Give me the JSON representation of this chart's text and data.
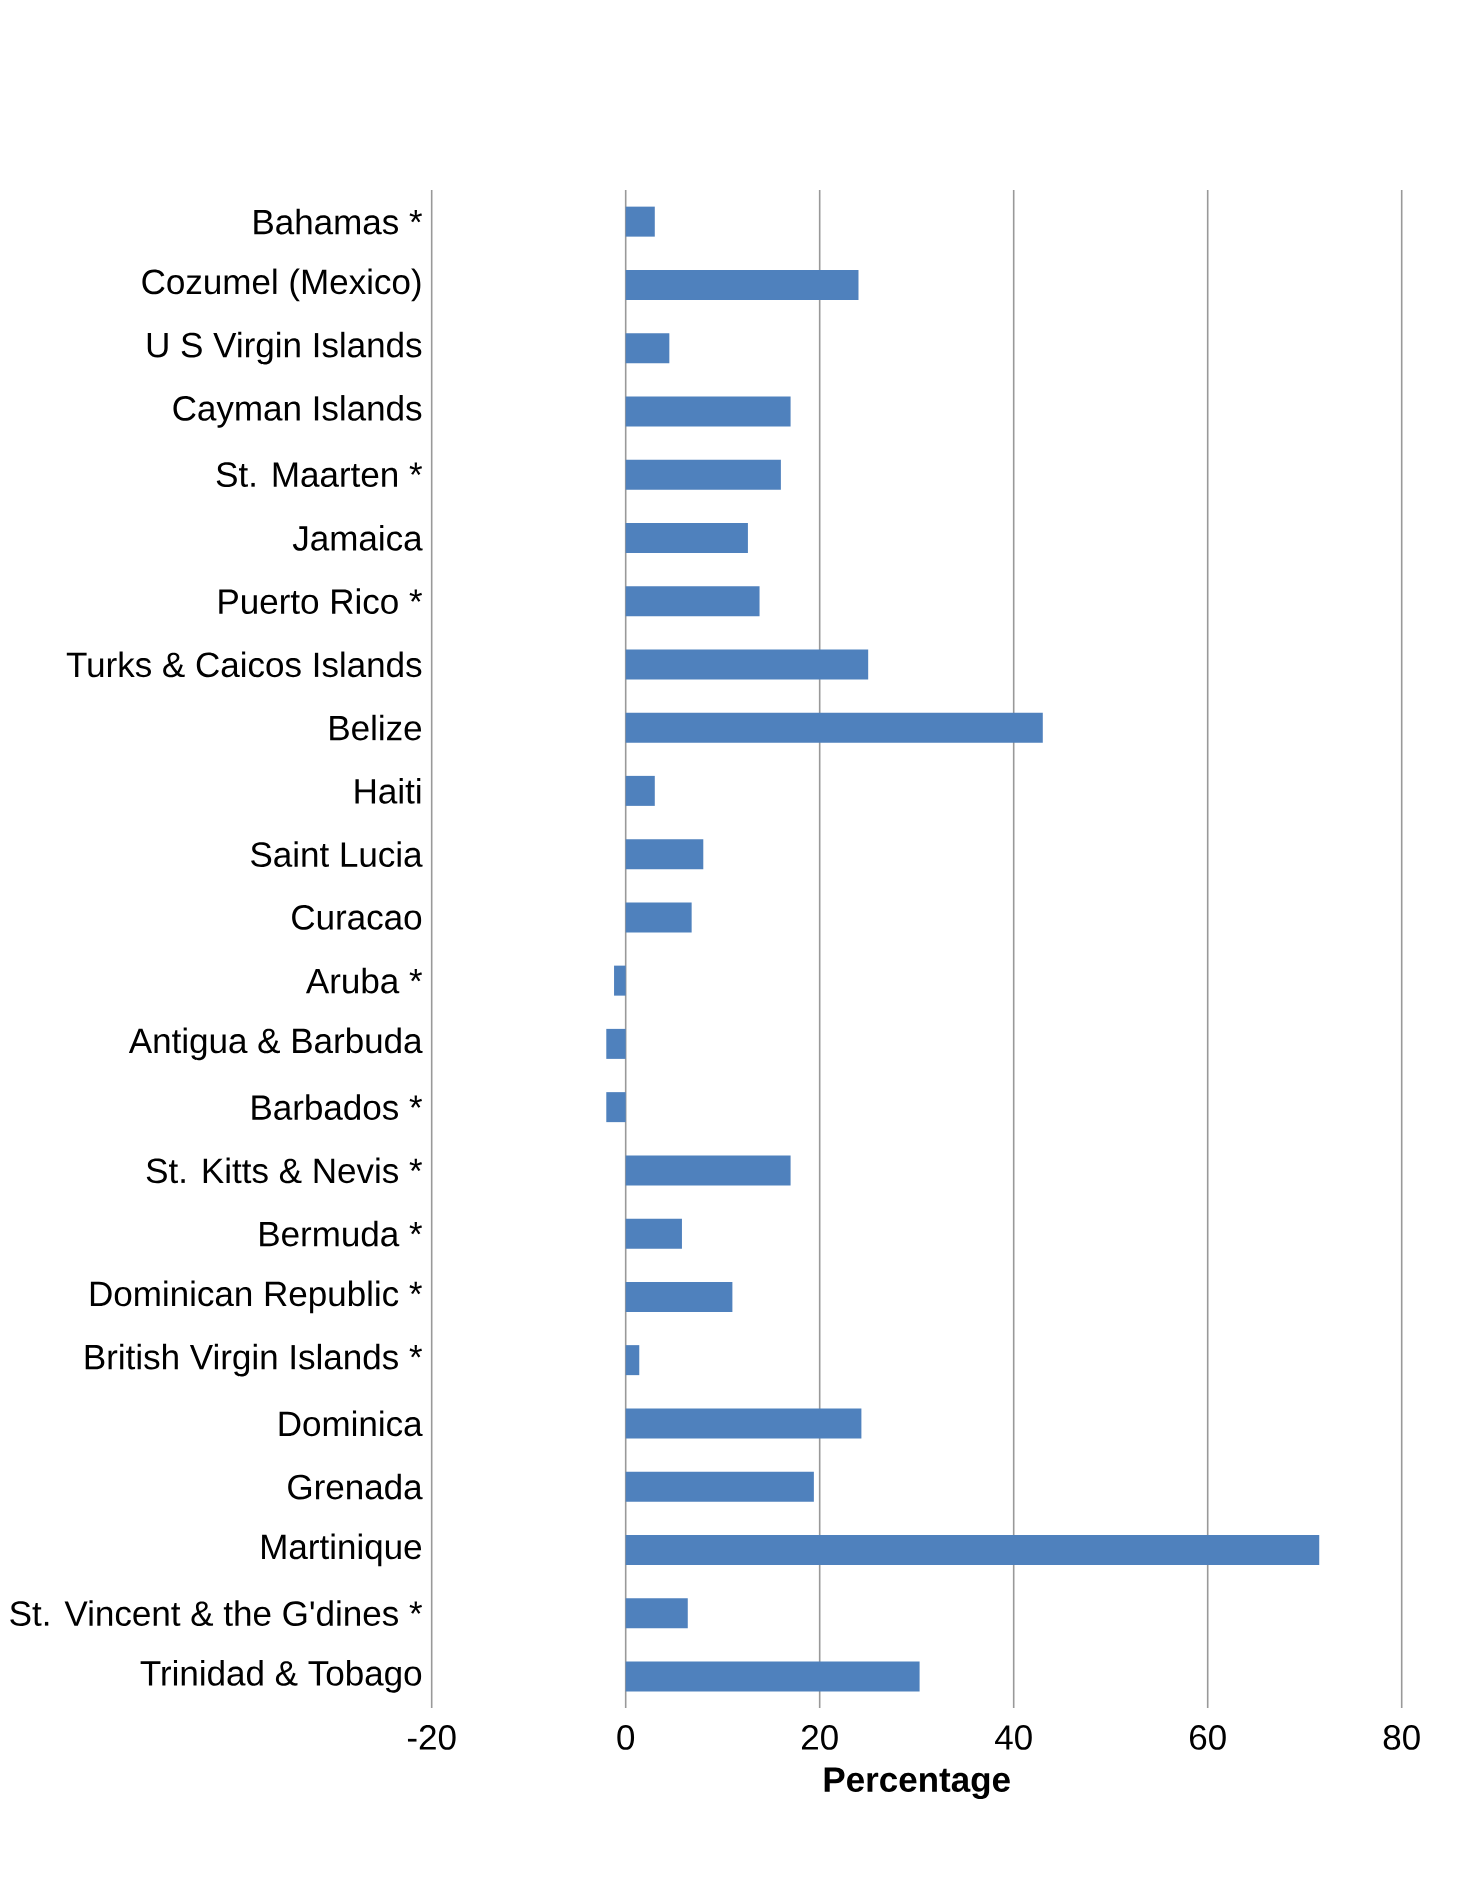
{
  "chart_data": {
    "type": "bar",
    "orientation": "horizontal",
    "xlabel": "Percentage",
    "categories": [
      "Bahamas *",
      "Cozumel (Mexico)",
      "U S Virgin Islands",
      "Cayman Islands",
      "St. Maarten *",
      "Jamaica",
      "Puerto Rico *",
      "Turks & Caicos Islands",
      "Belize",
      "Haiti",
      "Saint Lucia",
      "Curacao",
      "Aruba *",
      "Antigua & Barbuda",
      "Barbados *",
      "St. Kitts & Nevis *",
      "Bermuda *",
      "Dominican Republic *",
      "British Virgin Islands *",
      "Dominica",
      "Grenada",
      "Martinique",
      "St. Vincent & the G'dines *",
      "Trinidad & Tobago"
    ],
    "values": [
      3,
      24,
      4.5,
      17,
      16,
      12.6,
      13.8,
      25,
      43,
      3,
      8,
      6.8,
      -1.2,
      -2,
      -2,
      17,
      5.8,
      11,
      1.4,
      24.3,
      19.4,
      71.5,
      6.4,
      30.3
    ],
    "color": "#4f81bd",
    "xlim": [
      -20,
      80
    ],
    "xticks": [
      -20,
      0,
      20,
      40,
      60,
      80
    ],
    "grid": "x"
  }
}
